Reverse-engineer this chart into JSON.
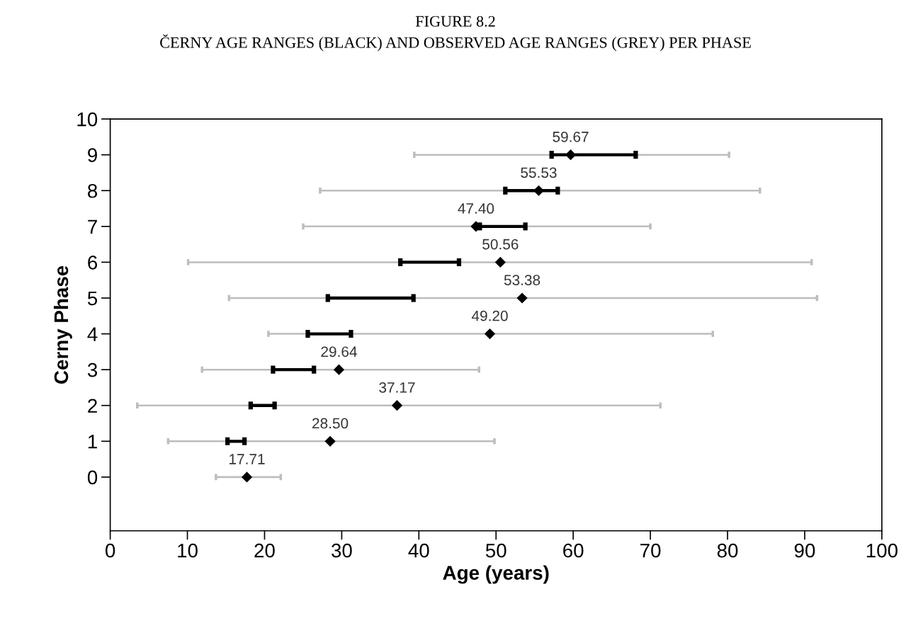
{
  "chart_data": {
    "type": "bar",
    "orientation": "horizontal",
    "title": "FIGURE 8.2",
    "subtitle": "ČERNY AGE RANGES (BLACK) AND OBSERVED AGE RANGES (GREY) PER PHASE",
    "xlabel": "Age (years)",
    "ylabel": "Cerny Phase",
    "categories": [
      "10",
      "9",
      "8",
      "7",
      "6",
      "5",
      "4",
      "3",
      "2",
      "1",
      "0",
      null
    ],
    "xlim": [
      0,
      100
    ],
    "xticks": [
      0,
      10,
      20,
      30,
      40,
      50,
      60,
      70,
      80,
      90,
      100
    ],
    "grid": false,
    "series": [
      {
        "color": "#bdbdbd",
        "base": [
          null,
          39.4,
          27.2,
          25.0,
          10.1,
          15.4,
          20.5,
          11.9,
          3.5,
          7.5,
          13.7,
          null
        ],
        "values": [
          null,
          40.8,
          57.0,
          45.0,
          80.8,
          76.2,
          57.6,
          35.9,
          67.8,
          42.3,
          8.4,
          null
        ]
      },
      {
        "color": "#000000",
        "base": [
          null,
          57.2,
          51.2,
          47.9,
          37.6,
          28.2,
          25.6,
          21.1,
          18.2,
          15.2,
          null,
          null
        ],
        "values": [
          null,
          10.9,
          6.8,
          5.9,
          7.6,
          11.1,
          5.6,
          5.3,
          3.1,
          2.2,
          null,
          null
        ]
      },
      {
        "type": "scatter",
        "marker": "diamond",
        "color": "#000000",
        "values": [
          null,
          59.67,
          55.53,
          47.4,
          50.56,
          53.38,
          49.2,
          29.64,
          37.17,
          28.5,
          17.71,
          null
        ],
        "value_labels": [
          null,
          "59.67",
          "55.53",
          "47.40",
          "50.56",
          "53.38",
          "49.20",
          "29.64",
          "37.17",
          "28.50",
          "17.71",
          null
        ]
      }
    ]
  }
}
